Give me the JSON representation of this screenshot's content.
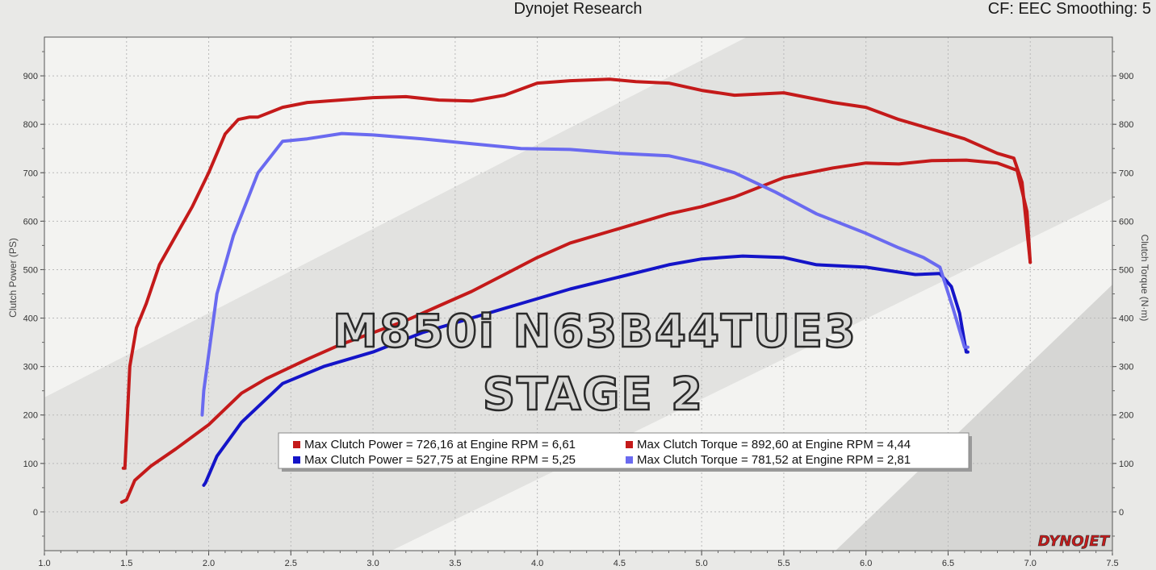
{
  "header": {
    "title": "Dynojet Research",
    "right": "CF: EEC Smoothing: 5"
  },
  "overlay": {
    "line1": "M850i N63B44TUE3",
    "line2": "STAGE 2"
  },
  "logo": {
    "text": "DYNOJET"
  },
  "colors": {
    "red": "#c41a1a",
    "blue": "#1414c8",
    "light_blue": "#6a6af0",
    "plot_bg": "#f3f3f1",
    "band": "#e2e2e0"
  },
  "legend": [
    {
      "text": "Max Clutch Power = 726,16 at Engine RPM = 6,61",
      "color": "#c41a1a"
    },
    {
      "text": "Max Clutch Torque = 892,60 at Engine RPM = 4,44",
      "color": "#c41a1a"
    },
    {
      "text": "Max Clutch Power = 527,75 at Engine RPM = 5,25",
      "color": "#1414c8"
    },
    {
      "text": "Max Clutch Torque = 781,52 at Engine RPM = 2,81",
      "color": "#6a6af0"
    }
  ],
  "chart_data": {
    "type": "line",
    "xlabel": "",
    "ylabel": "Clutch Power (PS)",
    "y2label": "Clutch Torque (N·m)",
    "xlim": [
      1.0,
      7.5
    ],
    "ylim": [
      -80,
      980
    ],
    "x_ticks": [
      1.0,
      1.5,
      2.0,
      2.5,
      3.0,
      3.5,
      4.0,
      4.5,
      5.0,
      5.5,
      6.0,
      6.5,
      7.0,
      7.5
    ],
    "y_ticks": [
      0,
      100,
      200,
      300,
      400,
      500,
      600,
      700,
      800,
      900
    ],
    "grid": true,
    "series": [
      {
        "name": "Clutch Torque (red)",
        "color": "#c41a1a",
        "x": [
          1.48,
          1.49,
          1.52,
          1.56,
          1.62,
          1.7,
          1.8,
          1.9,
          2.0,
          2.1,
          2.18,
          2.25,
          2.3,
          2.45,
          2.6,
          2.8,
          3.0,
          3.2,
          3.4,
          3.6,
          3.8,
          4.0,
          4.2,
          4.44,
          4.6,
          4.8,
          5.0,
          5.2,
          5.5,
          5.8,
          6.0,
          6.2,
          6.4,
          6.6,
          6.8,
          6.9,
          6.95,
          7.0
        ],
        "y": [
          90,
          90,
          300,
          380,
          430,
          510,
          570,
          630,
          700,
          780,
          810,
          815,
          815,
          835,
          845,
          850,
          855,
          857,
          850,
          848,
          860,
          885,
          890,
          893,
          888,
          885,
          870,
          860,
          865,
          845,
          835,
          810,
          790,
          770,
          740,
          730,
          680,
          515
        ]
      },
      {
        "name": "Clutch Power (red)",
        "color": "#c41a1a",
        "x": [
          1.47,
          1.5,
          1.55,
          1.65,
          1.8,
          2.0,
          2.2,
          2.35,
          2.6,
          2.8,
          3.0,
          3.2,
          3.4,
          3.6,
          3.8,
          4.0,
          4.2,
          4.5,
          4.8,
          5.0,
          5.2,
          5.5,
          5.8,
          6.0,
          6.2,
          6.4,
          6.61,
          6.8,
          6.92,
          6.98,
          7.0
        ],
        "y": [
          20,
          25,
          65,
          95,
          130,
          180,
          245,
          275,
          315,
          345,
          370,
          395,
          425,
          455,
          490,
          525,
          555,
          585,
          615,
          630,
          650,
          690,
          710,
          720,
          718,
          725,
          726,
          720,
          705,
          620,
          515
        ]
      },
      {
        "name": "Clutch Power (blue)",
        "color": "#1414c8",
        "x": [
          1.97,
          1.98,
          2.05,
          2.2,
          2.45,
          2.7,
          3.0,
          3.3,
          3.6,
          3.9,
          4.2,
          4.5,
          4.8,
          5.0,
          5.25,
          5.5,
          5.7,
          6.0,
          6.2,
          6.3,
          6.45,
          6.52,
          6.57,
          6.61,
          6.62
        ],
        "y": [
          55,
          60,
          115,
          185,
          265,
          300,
          330,
          370,
          400,
          430,
          460,
          485,
          510,
          522,
          528,
          525,
          510,
          505,
          495,
          490,
          492,
          465,
          410,
          330,
          330
        ]
      },
      {
        "name": "Clutch Torque (light blue)",
        "color": "#6a6af0",
        "x": [
          1.96,
          1.97,
          2.05,
          2.15,
          2.3,
          2.45,
          2.6,
          2.81,
          3.0,
          3.3,
          3.6,
          3.9,
          4.2,
          4.5,
          4.8,
          5.0,
          5.2,
          5.45,
          5.7,
          6.0,
          6.2,
          6.35,
          6.45,
          6.53,
          6.6,
          6.62
        ],
        "y": [
          200,
          250,
          450,
          570,
          700,
          765,
          770,
          781,
          778,
          770,
          760,
          750,
          748,
          740,
          735,
          720,
          700,
          660,
          615,
          575,
          545,
          525,
          505,
          420,
          340,
          340
        ]
      }
    ]
  }
}
